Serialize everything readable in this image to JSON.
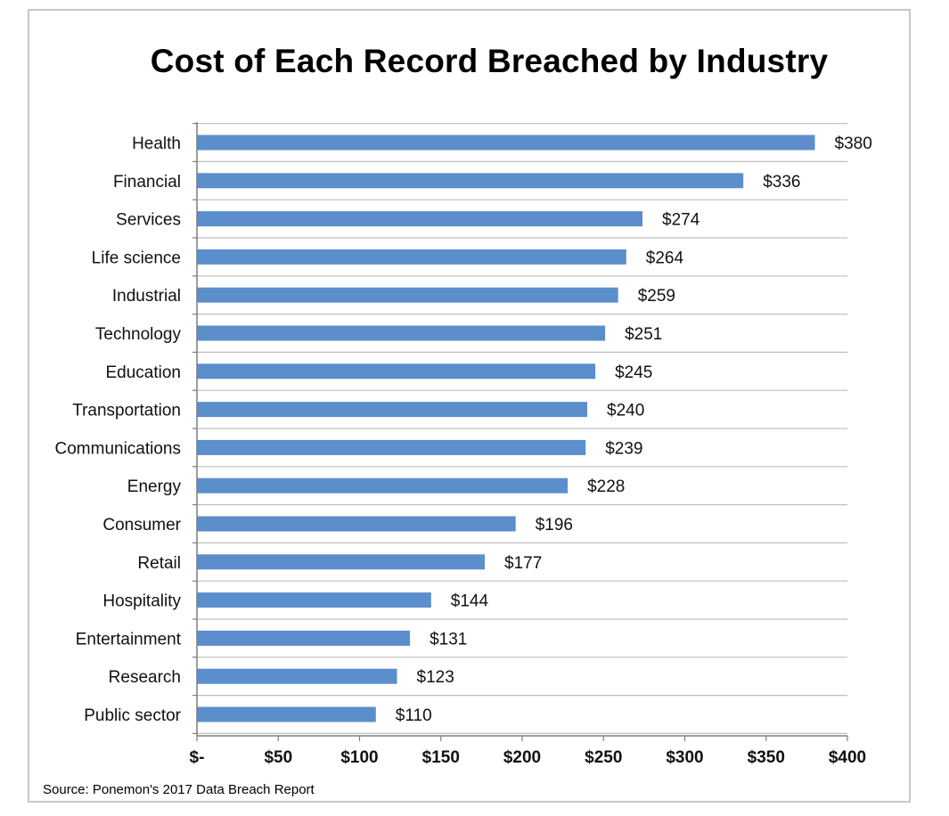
{
  "chart_data": {
    "type": "bar",
    "orientation": "horizontal",
    "title": "Cost of Each Record Breached by Industry",
    "categories": [
      "Health",
      "Financial",
      "Services",
      "Life science",
      "Industrial",
      "Technology",
      "Education",
      "Transportation",
      "Communications",
      "Energy",
      "Consumer",
      "Retail",
      "Hospitality",
      "Entertainment",
      "Research",
      "Public sector"
    ],
    "values": [
      380,
      336,
      274,
      264,
      259,
      251,
      245,
      240,
      239,
      228,
      196,
      177,
      144,
      131,
      123,
      110
    ],
    "data_labels": [
      "$380",
      "$336",
      "$274",
      "$264",
      "$259",
      "$251",
      "$245",
      "$240",
      "$239",
      "$228",
      "$196",
      "$177",
      "$144",
      "$131",
      "$123",
      "$110"
    ],
    "xlim": [
      0,
      400
    ],
    "x_ticks": [
      0,
      50,
      100,
      150,
      200,
      250,
      300,
      350,
      400
    ],
    "x_tick_labels": [
      "$-",
      "$50",
      "$100",
      "$150",
      "$200",
      "$250",
      "$300",
      "$350",
      "$400"
    ],
    "xlabel": "",
    "ylabel": "",
    "grid": "horizontal lines",
    "bar_color": "#5b8ecb",
    "legend": "none"
  },
  "source": "Source: Ponemon's 2017 Data Breach Report"
}
